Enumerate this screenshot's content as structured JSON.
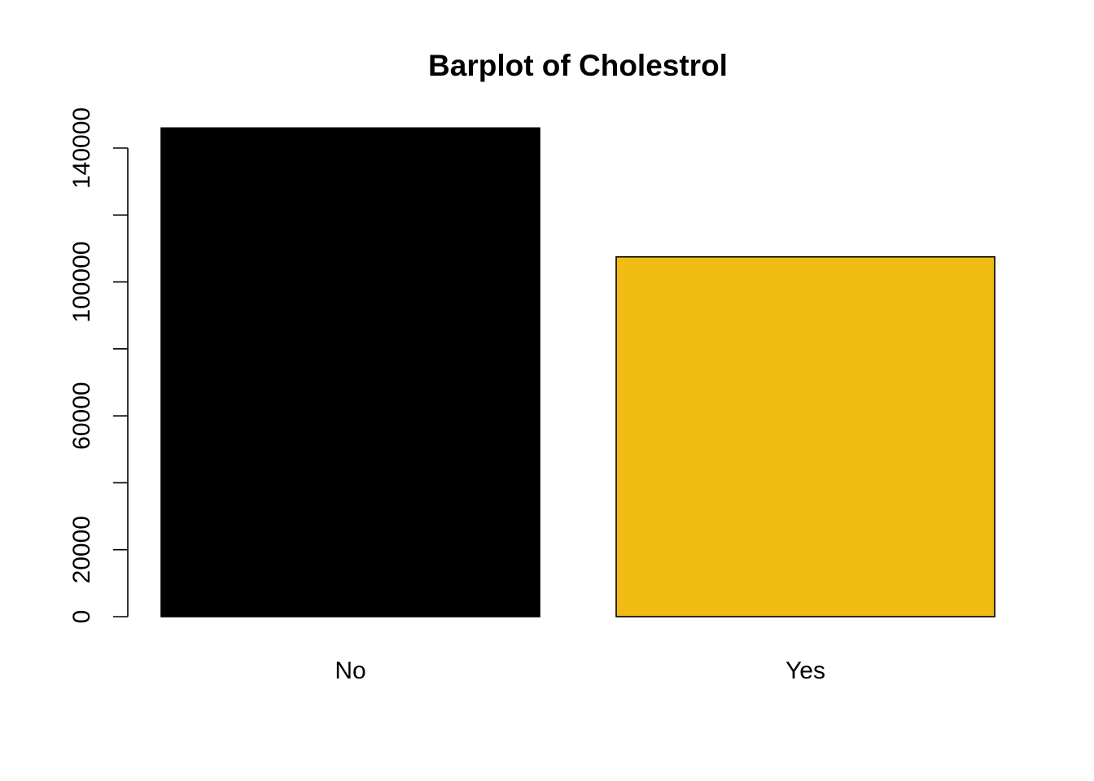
{
  "chart_data": {
    "type": "bar",
    "title": "Barplot of Cholestrol",
    "xlabel": "",
    "ylabel": "",
    "categories": [
      "No",
      "Yes"
    ],
    "values": [
      146000,
      107500
    ],
    "colors": [
      "#000000",
      "#F0BC13"
    ],
    "ylim": [
      0,
      140000
    ],
    "yticks": [
      0,
      20000,
      40000,
      60000,
      80000,
      100000,
      120000,
      140000
    ],
    "ytick_labels": [
      "0",
      "20000",
      "",
      "60000",
      "",
      "100000",
      "",
      "140000"
    ],
    "grid": false,
    "legend": "none"
  }
}
